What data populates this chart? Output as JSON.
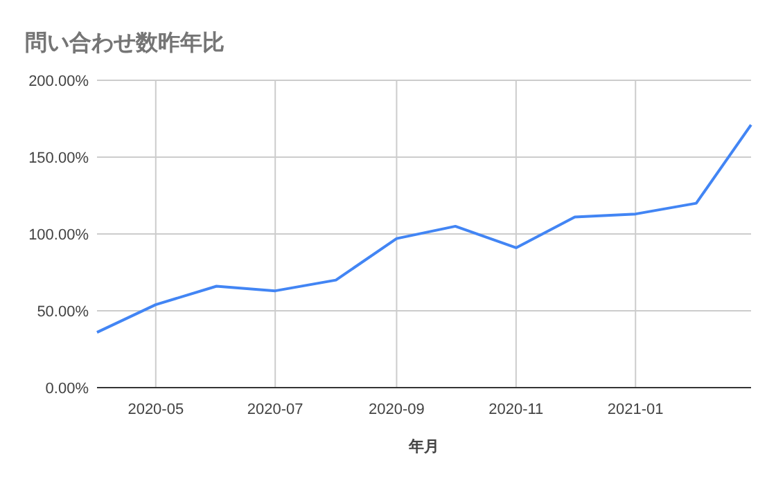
{
  "chart_data": {
    "type": "line",
    "title": "問い合わせ数昨年比",
    "xlabel": "年月",
    "x": [
      "2020-04",
      "2020-05",
      "2020-06",
      "2020-07",
      "2020-08",
      "2020-09",
      "2020-10",
      "2020-11",
      "2020-12",
      "2021-01",
      "2021-02",
      "2021-03"
    ],
    "series": [
      {
        "color": "#4285f4",
        "values": [
          36,
          54,
          66,
          63,
          70,
          97,
          105,
          91,
          111,
          113,
          120,
          171
        ]
      }
    ],
    "xlim": [
      "2020-04",
      "2021-03"
    ],
    "xticks": [
      "2020-05",
      "2020-07",
      "2020-09",
      "2020-11",
      "2021-01"
    ],
    "ylim": [
      0,
      200
    ],
    "yticks": [
      {
        "value": 0,
        "label": "0.00%"
      },
      {
        "value": 50,
        "label": "50.00%"
      },
      {
        "value": 100,
        "label": "100.00%"
      },
      {
        "value": 150,
        "label": "150.00%"
      },
      {
        "value": 200,
        "label": "200.00%"
      }
    ],
    "grid": true
  }
}
